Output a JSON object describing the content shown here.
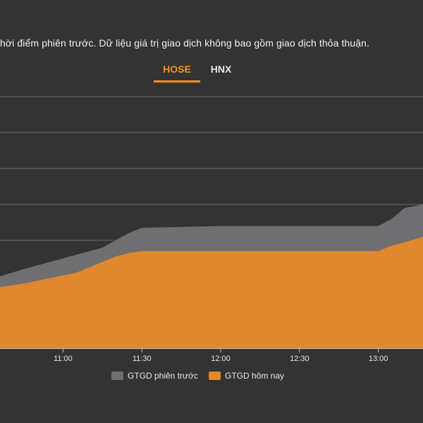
{
  "note": "hời điểm phiên trước. Dữ liệu giá trị giao dịch không bao gồm giao dịch thỏa thuận.",
  "tabs": [
    {
      "label": "HOSE",
      "active": true
    },
    {
      "label": "HNX",
      "active": false
    }
  ],
  "colors": {
    "background": "#333333",
    "previous": "#6f6f72",
    "today": "#e0882e",
    "grid": "#6a6a6a",
    "accent": "#f7941d"
  },
  "chart_data": {
    "type": "area",
    "x_ticks": [
      "11:00",
      "11:30",
      "12:00",
      "12:30",
      "13:00"
    ],
    "xlim": [
      "10:36",
      "13:17"
    ],
    "ylim": [
      0,
      7
    ],
    "gridlines": [
      1,
      2,
      3,
      4,
      5,
      6,
      7
    ],
    "series": [
      {
        "name": "GTGD phiên trước",
        "color": "#6f6f72",
        "x": [
          "10:36",
          "10:45",
          "10:55",
          "11:05",
          "11:15",
          "11:20",
          "11:25",
          "11:30",
          "12:00",
          "12:30",
          "13:00",
          "13:05",
          "13:10",
          "13:17"
        ],
        "y": [
          2.0,
          2.2,
          2.4,
          2.6,
          2.8,
          3.0,
          3.2,
          3.35,
          3.4,
          3.4,
          3.4,
          3.6,
          3.9,
          4.0
        ]
      },
      {
        "name": "GTGD hôm nay",
        "color": "#e0882e",
        "x": [
          "10:36",
          "10:45",
          "10:55",
          "11:05",
          "11:15",
          "11:20",
          "11:25",
          "11:30",
          "12:00",
          "12:30",
          "13:00",
          "13:05",
          "13:10",
          "13:17"
        ],
        "y": [
          1.7,
          1.8,
          1.95,
          2.1,
          2.4,
          2.55,
          2.65,
          2.7,
          2.7,
          2.7,
          2.7,
          2.85,
          2.95,
          3.1
        ]
      }
    ]
  }
}
